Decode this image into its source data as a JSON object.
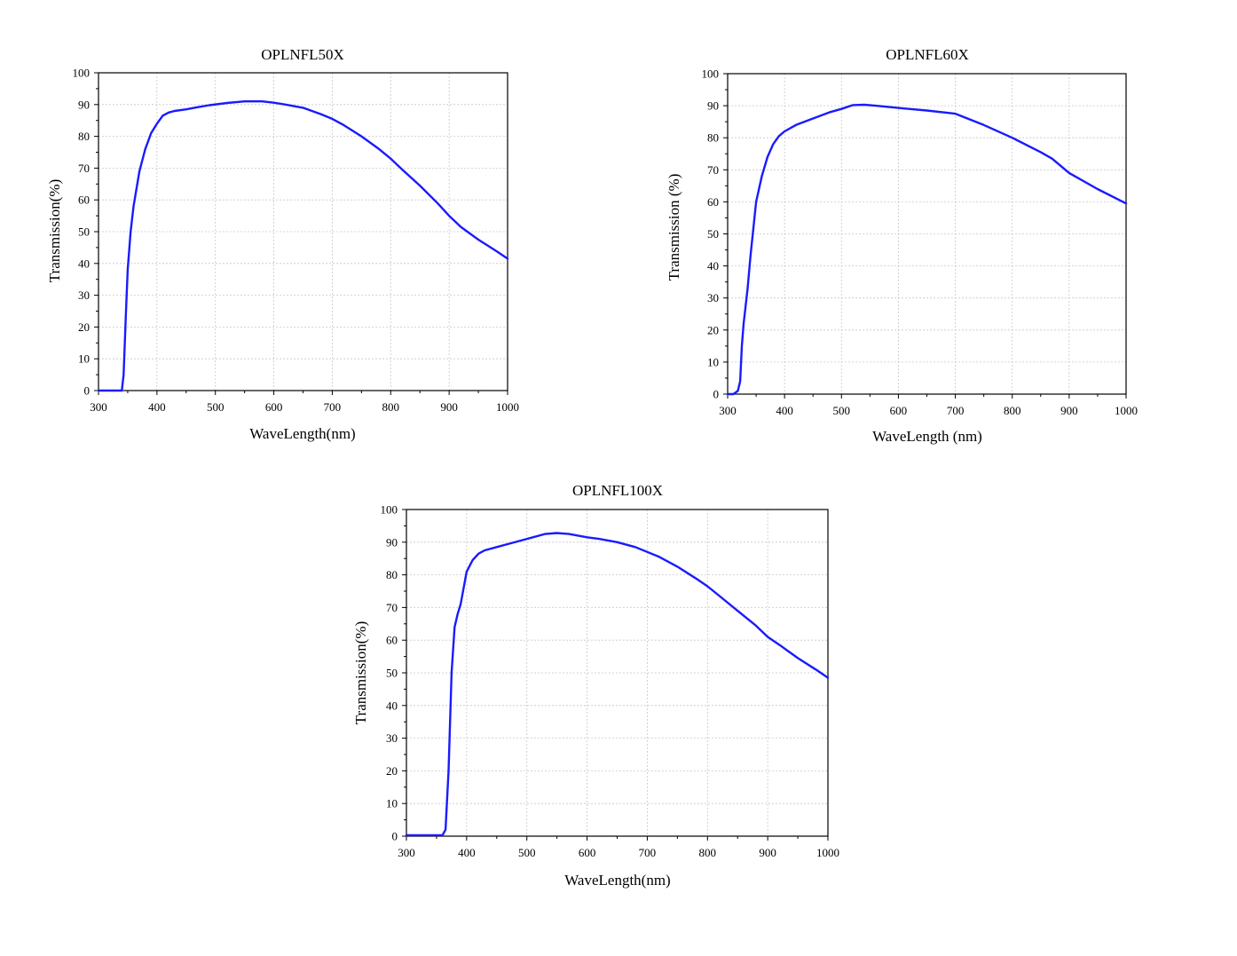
{
  "chart_data": [
    {
      "type": "line",
      "title": "OPLNFL50X",
      "xlabel": "WaveLength(nm)",
      "ylabel": "Transmission(%)",
      "xlim": [
        300,
        1000
      ],
      "ylim": [
        0,
        100
      ],
      "xticks": [
        300,
        400,
        500,
        600,
        700,
        800,
        900,
        1000
      ],
      "yticks": [
        0,
        10,
        20,
        30,
        40,
        50,
        60,
        70,
        80,
        90,
        100
      ],
      "grid": true,
      "color": "#1a1aff",
      "series": [
        {
          "x": [
            300,
            335,
            340,
            343,
            347,
            350,
            355,
            360,
            370,
            380,
            390,
            400,
            410,
            420,
            430,
            450,
            470,
            490,
            520,
            550,
            580,
            600,
            620,
            650,
            680,
            700,
            720,
            750,
            780,
            800,
            820,
            850,
            880,
            900,
            920,
            950,
            980,
            1000
          ],
          "y": [
            0,
            0,
            0,
            5,
            25,
            38,
            50,
            58,
            69,
            76,
            81,
            84,
            86.5,
            87.5,
            88,
            88.5,
            89.2,
            89.8,
            90.5,
            91,
            91,
            90.6,
            90,
            89,
            87,
            85.5,
            83.5,
            80,
            76,
            73,
            69.5,
            64.5,
            59,
            55,
            51.5,
            47.5,
            44,
            41.5
          ]
        }
      ]
    },
    {
      "type": "line",
      "title": "OPLNFL60X",
      "xlabel": "WaveLength (nm)",
      "ylabel": "Transmission (%)",
      "xlim": [
        300,
        1000
      ],
      "ylim": [
        0,
        100
      ],
      "xticks": [
        300,
        400,
        500,
        600,
        700,
        800,
        900,
        1000
      ],
      "yticks": [
        0,
        10,
        20,
        30,
        40,
        50,
        60,
        70,
        80,
        90,
        100
      ],
      "grid": true,
      "color": "#1a1aff",
      "series": [
        {
          "x": [
            300,
            310,
            318,
            322,
            325,
            328,
            335,
            340,
            350,
            360,
            370,
            380,
            390,
            400,
            420,
            450,
            480,
            500,
            520,
            540,
            560,
            600,
            650,
            700,
            750,
            800,
            850,
            870,
            900,
            950,
            1000
          ],
          "y": [
            0,
            0,
            1,
            4,
            15,
            22,
            33,
            43,
            60,
            68,
            74,
            78,
            80.5,
            82,
            84,
            86,
            88,
            89,
            90.2,
            90.3,
            90,
            89.3,
            88.5,
            87.5,
            84,
            80,
            75.5,
            73.5,
            69,
            64,
            59.5
          ]
        }
      ]
    },
    {
      "type": "line",
      "title": "OPLNFL100X",
      "xlabel": "WaveLength(nm)",
      "ylabel": "Transmission(%)",
      "xlim": [
        300,
        1000
      ],
      "ylim": [
        0,
        100
      ],
      "xticks": [
        300,
        400,
        500,
        600,
        700,
        800,
        900,
        1000
      ],
      "yticks": [
        0,
        10,
        20,
        30,
        40,
        50,
        60,
        70,
        80,
        90,
        100
      ],
      "grid": true,
      "color": "#1a1aff",
      "series": [
        {
          "x": [
            300,
            360,
            365,
            370,
            375,
            380,
            385,
            390,
            395,
            400,
            410,
            420,
            430,
            450,
            470,
            490,
            510,
            530,
            550,
            570,
            600,
            620,
            650,
            680,
            700,
            720,
            750,
            780,
            800,
            820,
            850,
            880,
            900,
            920,
            950,
            980,
            1000
          ],
          "y": [
            0.3,
            0.3,
            2,
            20,
            50,
            64,
            68,
            71,
            76,
            81,
            84.5,
            86.5,
            87.5,
            88.5,
            89.5,
            90.5,
            91.5,
            92.5,
            92.8,
            92.5,
            91.5,
            91,
            90,
            88.5,
            87,
            85.5,
            82.5,
            79,
            76.5,
            73.5,
            69,
            64.5,
            61,
            58.5,
            54.5,
            51,
            48.5
          ]
        }
      ]
    }
  ]
}
